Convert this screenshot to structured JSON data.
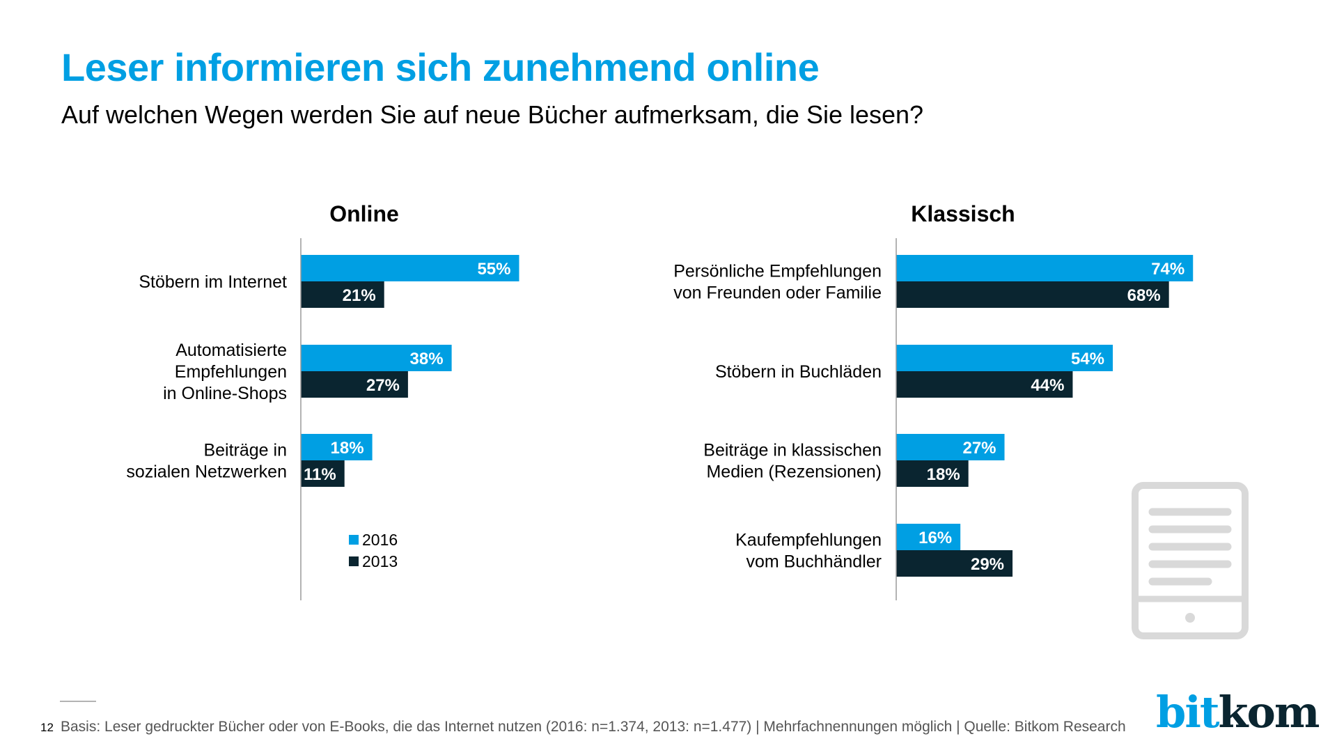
{
  "header": {
    "title": "Leser informieren sich zunehmend online",
    "subtitle": "Auf welchen Wegen werden Sie auf neue Bücher aufmerksam, die Sie lesen?"
  },
  "colors": {
    "title": "#009FE3",
    "series_2016": "#009FE3",
    "series_2013": "#0A2530",
    "axis": "#9a9a9a",
    "icon": "#d9d9d9"
  },
  "chart_data": [
    {
      "type": "bar",
      "orientation": "horizontal",
      "title": "Online",
      "categories": [
        [
          "Stöbern im Internet"
        ],
        [
          "Automatisierte",
          "Empfehlungen",
          "in Online-Shops"
        ],
        [
          "Beiträge in",
          "sozialen Netzwerken"
        ]
      ],
      "series": [
        {
          "name": "2016",
          "values": [
            55,
            38,
            18
          ]
        },
        {
          "name": "2013",
          "values": [
            21,
            27,
            11
          ]
        }
      ],
      "unit": "%",
      "xlim": [
        0,
        100
      ],
      "grid": false,
      "legend": {
        "position": "bottom-center",
        "entries": [
          "2016",
          "2013"
        ]
      }
    },
    {
      "type": "bar",
      "orientation": "horizontal",
      "title": "Klassisch",
      "categories": [
        [
          "Persönliche Empfehlungen",
          "von Freunden oder Familie"
        ],
        [
          "Stöbern in Buchläden"
        ],
        [
          "Beiträge in klassischen",
          "Medien (Rezensionen)"
        ],
        [
          "Kaufempfehlungen",
          "vom Buchhändler"
        ]
      ],
      "series": [
        {
          "name": "2016",
          "values": [
            74,
            54,
            27,
            16
          ]
        },
        {
          "name": "2013",
          "values": [
            68,
            44,
            18,
            29
          ]
        }
      ],
      "unit": "%",
      "xlim": [
        0,
        100
      ],
      "grid": false
    }
  ],
  "footer": {
    "page_number": "12",
    "note": "Basis: Leser gedruckter Bücher oder von E-Books, die das Internet nutzen (2016: n=1.374, 2013: n=1.477) | Mehrfachnennungen möglich | Quelle: Bitkom Research",
    "logo_part1": "bit",
    "logo_part2": "kom"
  },
  "decoration": {
    "icon": "tablet-icon"
  }
}
